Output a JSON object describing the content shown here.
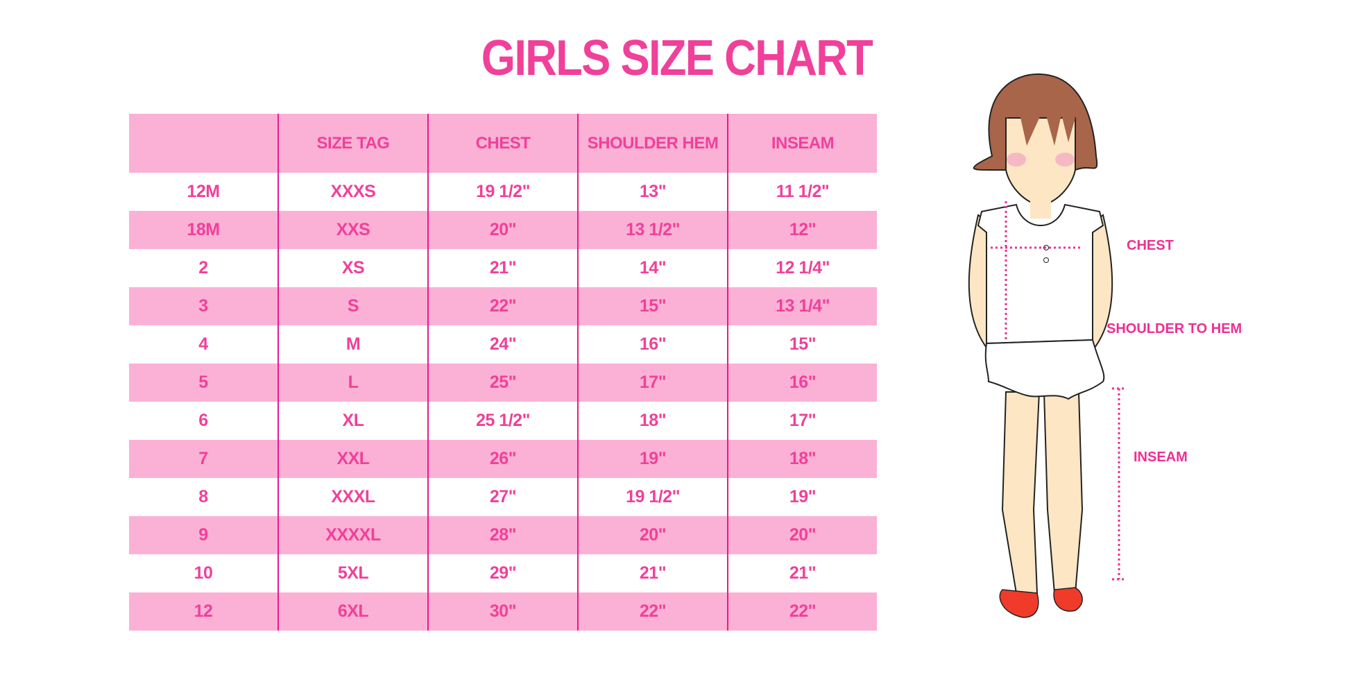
{
  "title": "GIRLS SIZE CHART",
  "table": {
    "headers": [
      "",
      "SIZE TAG",
      "CHEST",
      "SHOULDER HEM",
      "INSEAM"
    ],
    "rows": [
      [
        "12M",
        "XXXS",
        "19 1/2\"",
        "13\"",
        "11 1/2\""
      ],
      [
        "18M",
        "XXS",
        "20\"",
        "13 1/2\"",
        "12\""
      ],
      [
        "2",
        "XS",
        "21\"",
        "14\"",
        "12 1/4\""
      ],
      [
        "3",
        "S",
        "22\"",
        "15\"",
        "13 1/4\""
      ],
      [
        "4",
        "M",
        "24\"",
        "16\"",
        "15\""
      ],
      [
        "5",
        "L",
        "25\"",
        "17\"",
        "16\""
      ],
      [
        "6",
        "XL",
        "25 1/2\"",
        "18\"",
        "17\""
      ],
      [
        "7",
        "XXL",
        "26\"",
        "19\"",
        "18\""
      ],
      [
        "8",
        "XXXL",
        "27\"",
        "19 1/2\"",
        "19\""
      ],
      [
        "9",
        "XXXXL",
        "28\"",
        "20\"",
        "20\""
      ],
      [
        "10",
        "5XL",
        "29\"",
        "21\"",
        "21\""
      ],
      [
        "12",
        "6XL",
        "30\"",
        "22\"",
        "22\""
      ]
    ]
  },
  "diagram": {
    "labels": {
      "chest": "CHEST",
      "shoulder_to_hem": "SHOULDER TO HEM",
      "inseam": "INSEAM"
    }
  },
  "colors": {
    "accent": "#f0409a",
    "row_fill": "#fbb1d5",
    "divider": "#e8198b"
  }
}
